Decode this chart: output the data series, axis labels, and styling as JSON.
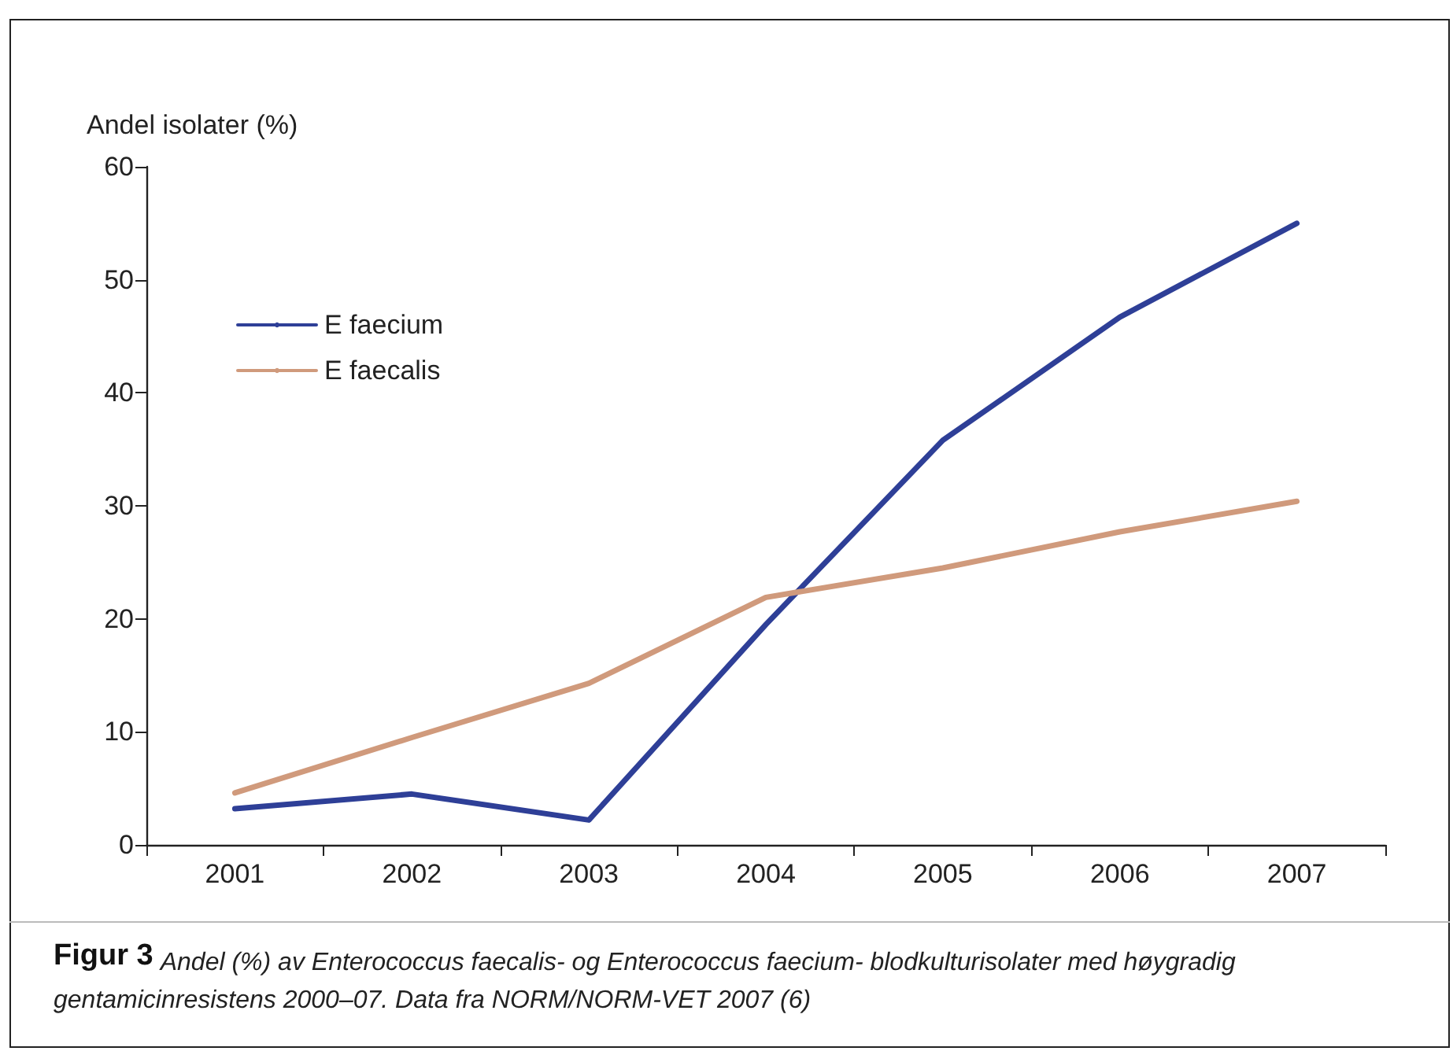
{
  "chart_data": {
    "type": "line",
    "title": "Figur 3",
    "subtitle": "Andel (%) av Enterococcus faecalis- og Enterococcus faecium- blodkulturisolater med høygradig gentamicinresistens 2000–07. Data fra NORM/NORM-VET 2007 (6)",
    "ylabel": "Andel isolater (%)",
    "categories": [
      "2001",
      "2002",
      "2003",
      "2004",
      "2005",
      "2006",
      "2007"
    ],
    "series": [
      {
        "name": "E faecium",
        "color": "#2e3f97",
        "values": [
          3.2,
          4.5,
          2.2,
          19.5,
          35.8,
          46.7,
          55.0
        ]
      },
      {
        "name": "E faecalis",
        "color": "#d09a7c",
        "values": [
          4.6,
          9.5,
          14.3,
          21.9,
          24.5,
          27.7,
          30.4
        ]
      }
    ],
    "ylim": [
      0,
      60
    ],
    "yticks": [
      0,
      10,
      20,
      30,
      40,
      50,
      60
    ],
    "grid": false,
    "legend": "top left",
    "marker": "none",
    "line_style": "solid"
  }
}
